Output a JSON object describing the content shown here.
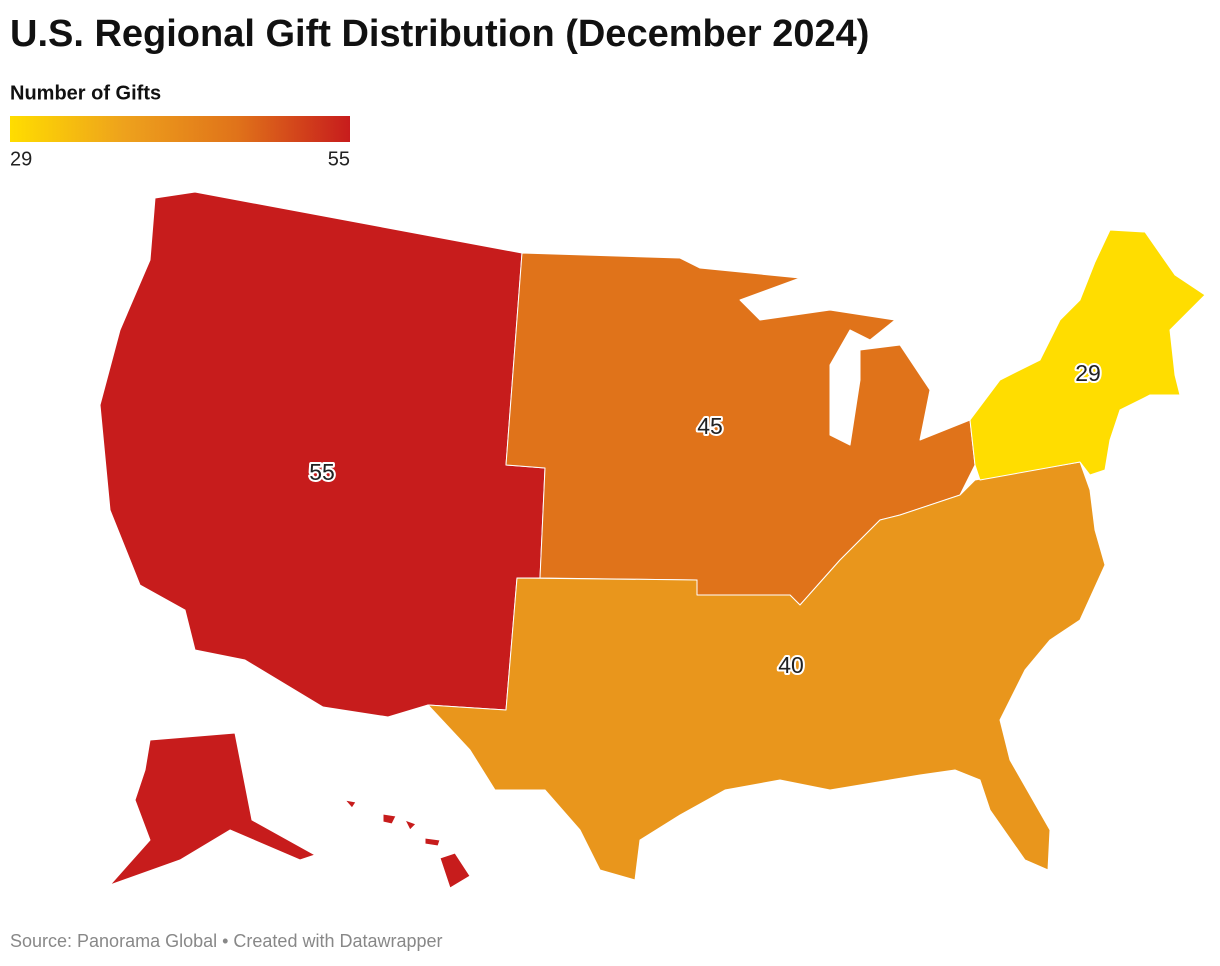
{
  "chart_data": {
    "type": "choropleth",
    "title": "U.S. Regional Gift Distribution (December 2024)",
    "colorbar": {
      "title": "Number of Gifts",
      "lim": [
        29,
        55
      ],
      "ticks": [
        29,
        55
      ],
      "colors": [
        "#ffdd00",
        "#eea21c",
        "#e0731a",
        "#c71c1c"
      ]
    },
    "values": [
      55,
      45,
      40,
      29
    ],
    "colors": [
      "#c71c1c",
      "#e0731a",
      "#e9961c",
      "#ffdd00"
    ],
    "source": "Source: Panorama Global • Created with Datawrapper"
  }
}
